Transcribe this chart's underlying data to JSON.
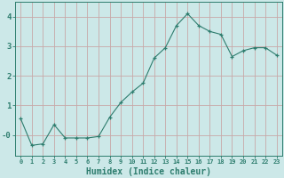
{
  "x": [
    0,
    1,
    2,
    3,
    4,
    5,
    6,
    7,
    8,
    9,
    10,
    11,
    12,
    13,
    14,
    15,
    16,
    17,
    18,
    19,
    20,
    21,
    22,
    23
  ],
  "y": [
    0.55,
    -0.35,
    -0.3,
    0.35,
    -0.1,
    -0.1,
    -0.1,
    -0.05,
    0.6,
    1.1,
    1.45,
    1.75,
    2.6,
    2.95,
    3.7,
    4.1,
    3.7,
    3.5,
    3.4,
    2.65,
    2.85,
    2.95,
    2.95,
    2.7
  ],
  "line_color": "#2e7d6e",
  "marker": "+",
  "background_color": "#cce8e8",
  "grid_color": "#c8a8a8",
  "xlabel": "Humidex (Indice chaleur)",
  "xlabel_fontsize": 7,
  "tick_color": "#2e7d6e",
  "ylim": [
    -0.7,
    4.5
  ],
  "xlim": [
    -0.5,
    23.5
  ],
  "yticks": [
    0,
    1,
    2,
    3,
    4
  ],
  "ytick_labels": [
    "-0",
    "1",
    "2",
    "3",
    "4"
  ],
  "xticks": [
    0,
    1,
    2,
    3,
    4,
    5,
    6,
    7,
    8,
    9,
    10,
    11,
    12,
    13,
    14,
    15,
    16,
    17,
    18,
    19,
    20,
    21,
    22,
    23
  ]
}
